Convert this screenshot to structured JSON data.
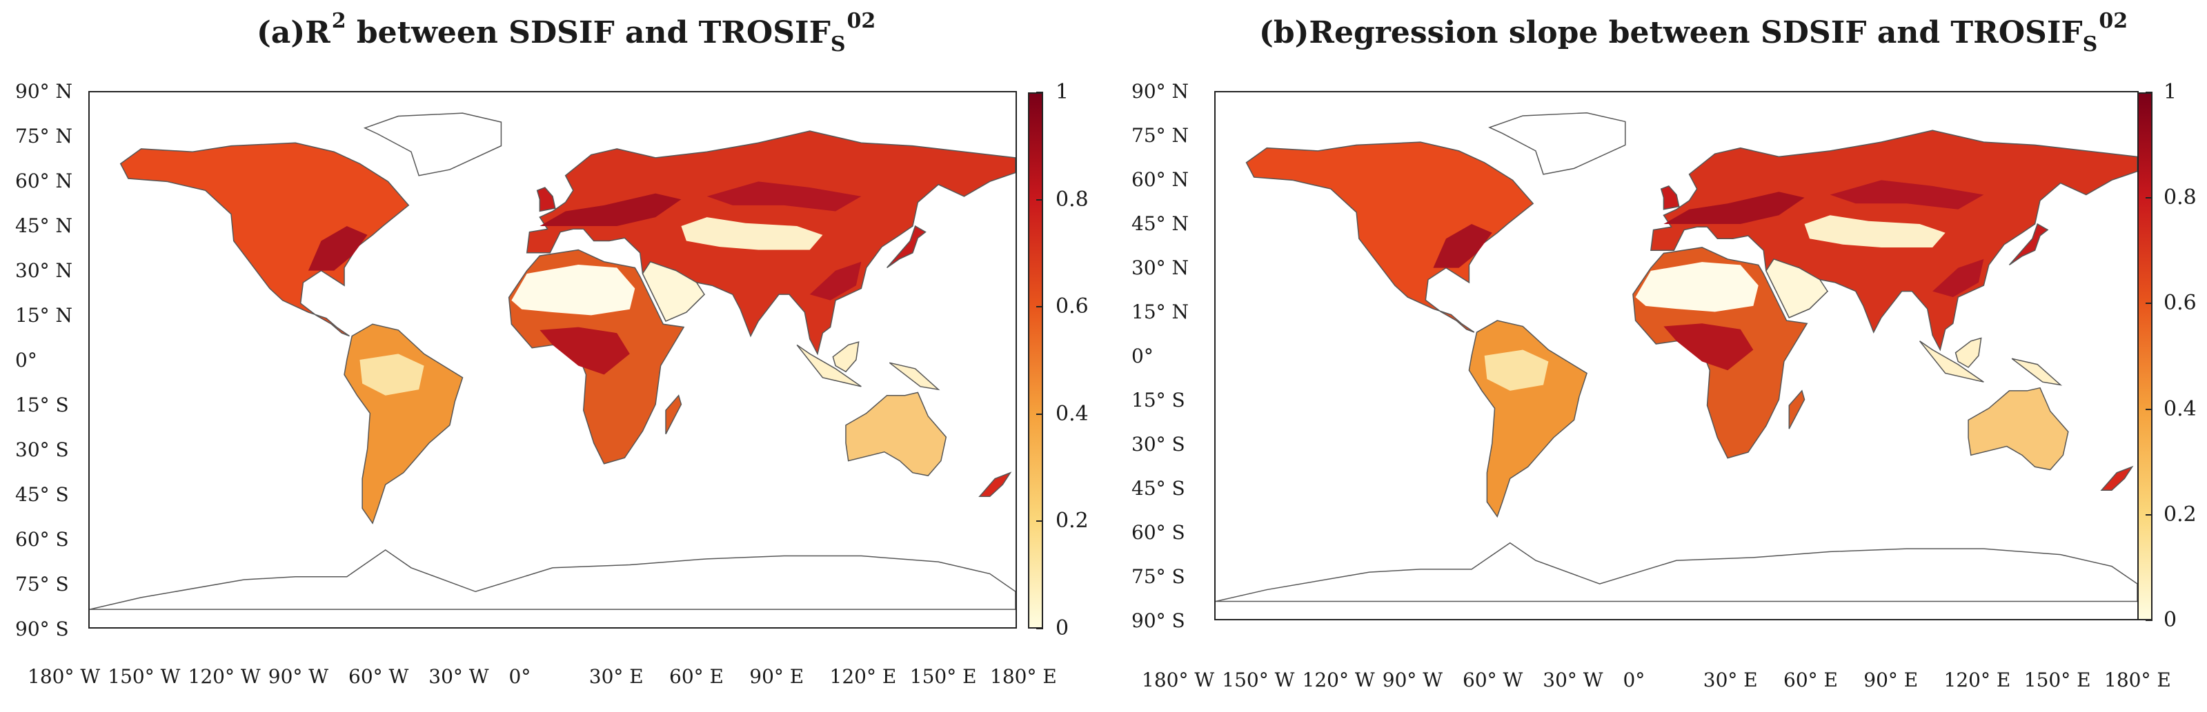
{
  "figure": {
    "panels": [
      {
        "id": "a",
        "title_prefix": "(a)R",
        "title_sup": "2",
        "title_main": " between SDSIF and TROSIF",
        "title_sub": "S",
        "title_suffix_sup": "02",
        "colorbar": {
          "min": 0,
          "max": 1,
          "ticks": [
            "0",
            "0.2",
            "0.4",
            "0.6",
            "0.8",
            "1"
          ]
        }
      },
      {
        "id": "b",
        "title_prefix": "(b)Regression slope between SDSIF and TROSIF",
        "title_sub": "S",
        "title_suffix_sup": "02",
        "colorbar": {
          "min": 0,
          "max": 1,
          "ticks": [
            "0",
            "0.2",
            "0.4",
            "0.6",
            "0.8",
            "1"
          ]
        }
      }
    ],
    "lat_labels": [
      "90° N",
      "75° N",
      "60° N",
      "45° N",
      "30° N",
      "15° N",
      "0°",
      "15° S",
      "30° S",
      "45° S",
      "60° S",
      "75° S",
      "90° S"
    ],
    "lon_labels": [
      "180° W",
      "150° W",
      "120° W",
      "90° W",
      "60° W",
      "30° W",
      "0°",
      "30° E",
      "60° E",
      "90° E",
      "120° E",
      "150° E",
      "180° E"
    ],
    "colors": {
      "low": "#fffde0",
      "mid": "#f5a13c",
      "high": "#e8561c",
      "max": "#7a0018"
    }
  }
}
